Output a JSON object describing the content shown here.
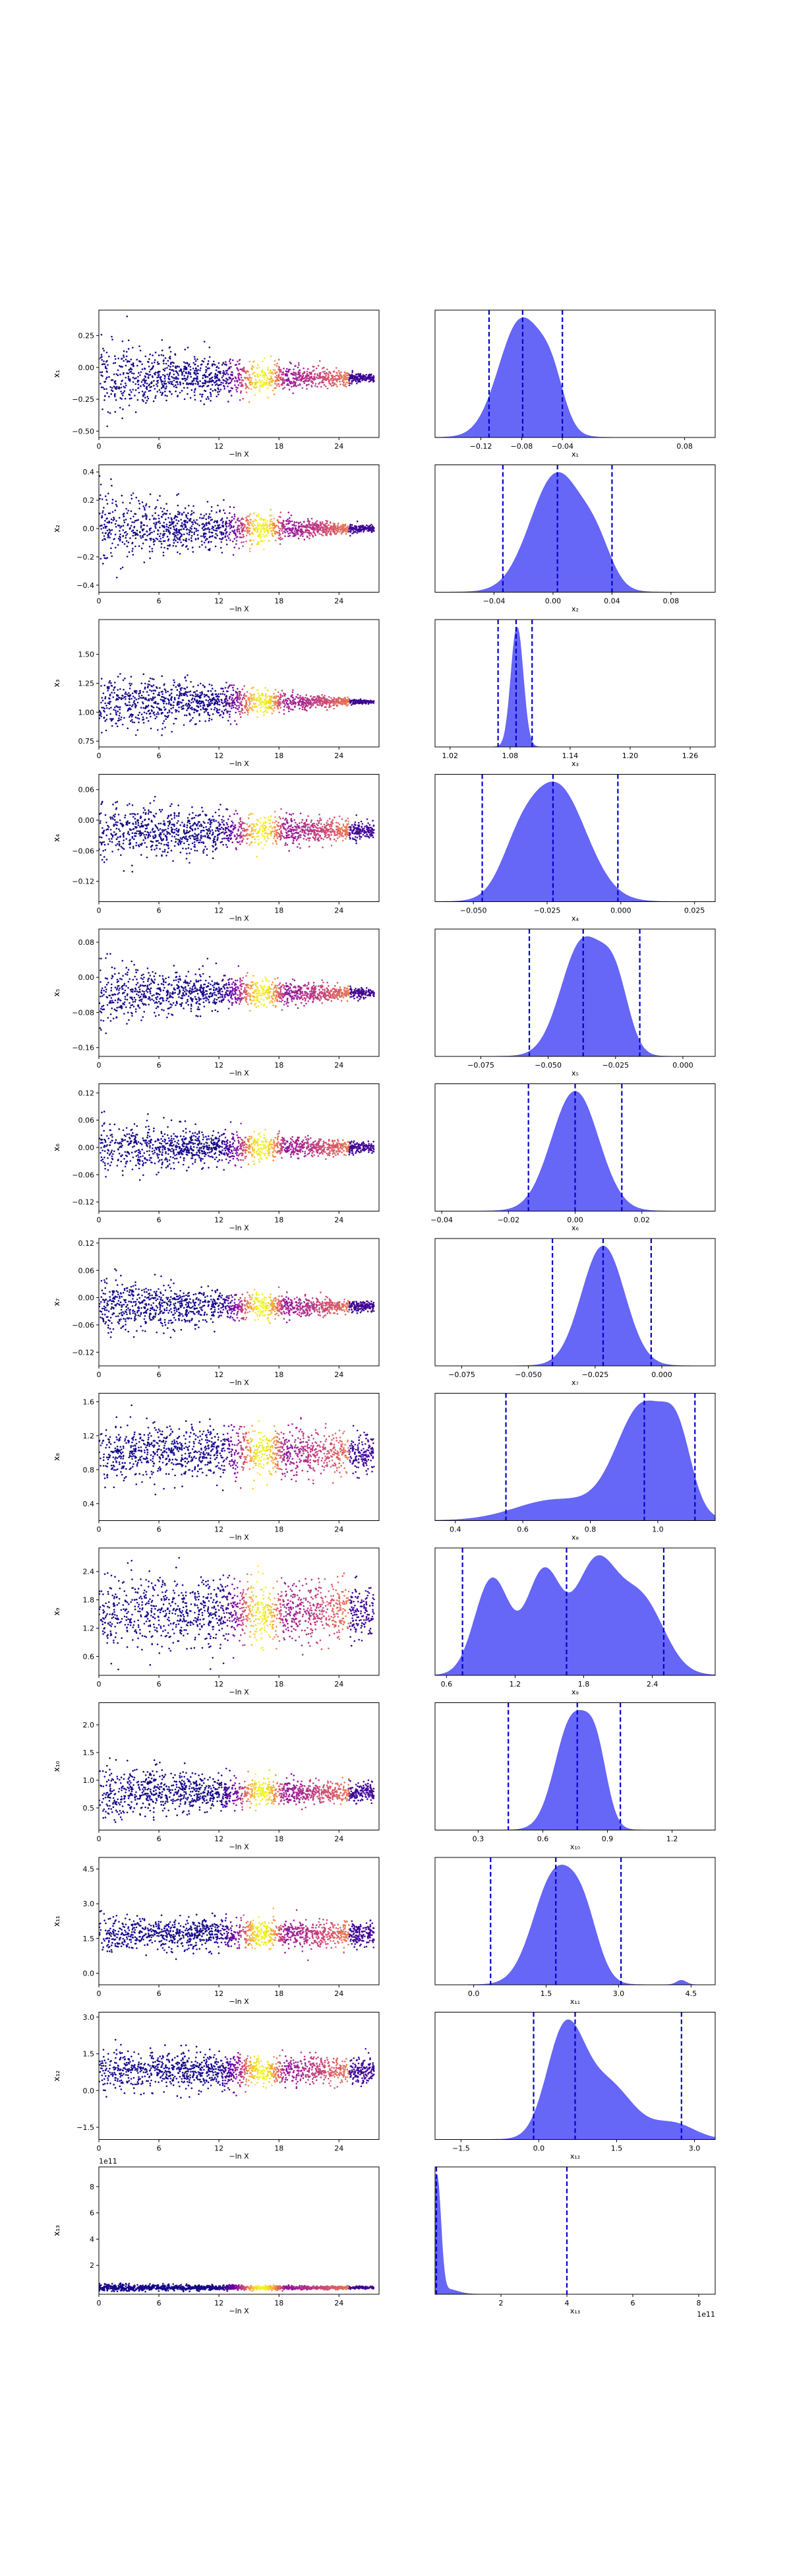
{
  "chart_data": [
    {
      "type": "scatter",
      "panel": "trace",
      "row": 1,
      "xlabel": "−ln X",
      "ylabel": "x₁",
      "xlim": [
        0,
        28
      ],
      "ylim": [
        -0.55,
        0.45
      ],
      "xticks": [
        0,
        6,
        12,
        18,
        24
      ],
      "yticks": [
        -0.5,
        -0.25,
        0.0,
        0.25
      ],
      "ytick_labels": [
        "−0.50",
        "−0.25",
        "0.00",
        "0.25"
      ],
      "center": -0.08,
      "spread_start": 0.3,
      "spread_end": 0.03
    },
    {
      "type": "area",
      "panel": "posterior",
      "row": 1,
      "xlabel": "x₁",
      "xlim": [
        -0.165,
        0.11
      ],
      "xticks": [
        -0.12,
        -0.08,
        -0.04,
        0.08
      ],
      "xtick_labels": [
        "−0.12",
        "−0.08",
        "−0.04",
        "0.08"
      ],
      "quantiles": [
        -0.112,
        -0.079,
        -0.04
      ],
      "density": [
        {
          "mu": -0.08,
          "sd": 0.022,
          "w": 1.0
        },
        {
          "mu": -0.05,
          "sd": 0.012,
          "w": 0.3
        }
      ]
    },
    {
      "type": "scatter",
      "panel": "trace",
      "row": 2,
      "xlabel": "−ln X",
      "ylabel": "x₂",
      "xlim": [
        0,
        28
      ],
      "ylim": [
        -0.45,
        0.45
      ],
      "xticks": [
        0,
        6,
        12,
        18,
        24
      ],
      "yticks": [
        -0.4,
        -0.2,
        0.0,
        0.2,
        0.4
      ],
      "ytick_labels": [
        "−0.4",
        "−0.2",
        "0.0",
        "0.2",
        "0.4"
      ],
      "center": 0.0,
      "spread_start": 0.28,
      "spread_end": 0.02
    },
    {
      "type": "area",
      "panel": "posterior",
      "row": 2,
      "xlabel": "x₂",
      "xlim": [
        -0.08,
        0.11
      ],
      "xticks": [
        -0.04,
        0.0,
        0.04,
        0.08
      ],
      "xtick_labels": [
        "−0.04",
        "0.00",
        "0.04",
        "0.08"
      ],
      "quantiles": [
        -0.034,
        0.003,
        0.04
      ],
      "density": [
        {
          "mu": 0.003,
          "sd": 0.018,
          "w": 1.0
        },
        {
          "mu": 0.03,
          "sd": 0.01,
          "w": 0.25
        }
      ]
    },
    {
      "type": "scatter",
      "panel": "trace",
      "row": 3,
      "xlabel": "−ln X",
      "ylabel": "x₃",
      "xlim": [
        0,
        28
      ],
      "ylim": [
        0.7,
        1.8
      ],
      "xticks": [
        0,
        6,
        12,
        18,
        24
      ],
      "yticks": [
        0.75,
        1.0,
        1.25,
        1.5
      ],
      "ytick_labels": [
        "0.75",
        "1.00",
        "1.25",
        "1.50"
      ],
      "center": 1.09,
      "spread_start": 0.3,
      "spread_end": 0.01
    },
    {
      "type": "area",
      "panel": "posterior",
      "row": 3,
      "xlabel": "x₃",
      "xlim": [
        1.005,
        1.285
      ],
      "xticks": [
        1.02,
        1.08,
        1.14,
        1.2,
        1.26
      ],
      "xtick_labels": [
        "1.02",
        "1.08",
        "1.14",
        "1.20",
        "1.26"
      ],
      "quantiles": [
        1.068,
        1.086,
        1.102
      ],
      "density": [
        {
          "mu": 1.087,
          "sd": 0.006,
          "w": 1.0
        }
      ]
    },
    {
      "type": "scatter",
      "panel": "trace",
      "row": 4,
      "xlabel": "−ln X",
      "ylabel": "x₄",
      "xlim": [
        0,
        28
      ],
      "ylim": [
        -0.16,
        0.09
      ],
      "xticks": [
        0,
        6,
        12,
        18,
        24
      ],
      "yticks": [
        -0.12,
        -0.06,
        0.0,
        0.06
      ],
      "ytick_labels": [
        "−0.12",
        "−0.06",
        "0.00",
        "0.06"
      ],
      "center": -0.02,
      "spread_start": 0.065,
      "spread_end": 0.015
    },
    {
      "type": "area",
      "panel": "posterior",
      "row": 4,
      "xlabel": "x₄",
      "xlim": [
        -0.063,
        0.032
      ],
      "xticks": [
        -0.05,
        -0.025,
        0.0,
        0.025
      ],
      "xtick_labels": [
        "−0.050",
        "−0.025",
        "0.000",
        "0.025"
      ],
      "quantiles": [
        -0.047,
        -0.023,
        -0.001
      ],
      "density": [
        {
          "mu": -0.022,
          "sd": 0.01,
          "w": 1.0
        },
        {
          "mu": -0.035,
          "sd": 0.006,
          "w": 0.25
        }
      ]
    },
    {
      "type": "scatter",
      "panel": "trace",
      "row": 5,
      "xlabel": "−ln X",
      "ylabel": "x₅",
      "xlim": [
        0,
        28
      ],
      "ylim": [
        -0.18,
        0.11
      ],
      "xticks": [
        0,
        6,
        12,
        18,
        24
      ],
      "yticks": [
        -0.16,
        -0.08,
        0.0,
        0.08
      ],
      "ytick_labels": [
        "−0.16",
        "−0.08",
        "0.00",
        "0.08"
      ],
      "center": -0.035,
      "spread_start": 0.075,
      "spread_end": 0.01
    },
    {
      "type": "area",
      "panel": "posterior",
      "row": 5,
      "xlabel": "x₅",
      "xlim": [
        -0.092,
        0.012
      ],
      "xticks": [
        -0.075,
        -0.05,
        -0.025,
        0.0
      ],
      "xtick_labels": [
        "−0.075",
        "−0.050",
        "−0.025",
        "0.000"
      ],
      "quantiles": [
        -0.057,
        -0.037,
        -0.016
      ],
      "density": [
        {
          "mu": -0.037,
          "sd": 0.008,
          "w": 1.0
        },
        {
          "mu": -0.025,
          "sd": 0.005,
          "w": 0.5
        }
      ]
    },
    {
      "type": "scatter",
      "panel": "trace",
      "row": 6,
      "xlabel": "−ln X",
      "ylabel": "x₆",
      "xlim": [
        0,
        28
      ],
      "ylim": [
        -0.14,
        0.14
      ],
      "xticks": [
        0,
        6,
        12,
        18,
        24
      ],
      "yticks": [
        -0.12,
        -0.06,
        0.0,
        0.06,
        0.12
      ],
      "ytick_labels": [
        "−0.12",
        "−0.06",
        "0.00",
        "0.06",
        "0.12"
      ],
      "center": 0.0,
      "spread_start": 0.07,
      "spread_end": 0.01
    },
    {
      "type": "area",
      "panel": "posterior",
      "row": 6,
      "xlabel": "x₆",
      "xlim": [
        -0.042,
        0.042
      ],
      "xticks": [
        -0.04,
        -0.02,
        0.0,
        0.02
      ],
      "xtick_labels": [
        "−0.04",
        "−0.02",
        "0.00",
        "0.02"
      ],
      "quantiles": [
        -0.014,
        0.0,
        0.014
      ],
      "density": [
        {
          "mu": 0.0,
          "sd": 0.007,
          "w": 1.0
        }
      ]
    },
    {
      "type": "scatter",
      "panel": "trace",
      "row": 7,
      "xlabel": "−ln X",
      "ylabel": "x₇",
      "xlim": [
        0,
        28
      ],
      "ylim": [
        -0.15,
        0.13
      ],
      "xticks": [
        0,
        6,
        12,
        18,
        24
      ],
      "yticks": [
        -0.12,
        -0.06,
        0.0,
        0.06,
        0.12
      ],
      "ytick_labels": [
        "−0.12",
        "−0.06",
        "0.00",
        "0.06",
        "0.12"
      ],
      "center": -0.02,
      "spread_start": 0.07,
      "spread_end": 0.01
    },
    {
      "type": "area",
      "panel": "posterior",
      "row": 7,
      "xlabel": "x₇",
      "xlim": [
        -0.085,
        0.02
      ],
      "xticks": [
        -0.075,
        -0.05,
        -0.025,
        0.0
      ],
      "xtick_labels": [
        "−0.075",
        "−0.050",
        "−0.025",
        "0.000"
      ],
      "quantiles": [
        -0.041,
        -0.022,
        -0.004
      ],
      "density": [
        {
          "mu": -0.022,
          "sd": 0.008,
          "w": 1.0
        }
      ]
    },
    {
      "type": "scatter",
      "panel": "trace",
      "row": 8,
      "xlabel": "−ln X",
      "ylabel": "x₈",
      "xlim": [
        0,
        28
      ],
      "ylim": [
        0.2,
        1.7
      ],
      "xticks": [
        0,
        6,
        12,
        18,
        24
      ],
      "yticks": [
        0.4,
        0.8,
        1.2,
        1.6
      ],
      "ytick_labels": [
        "0.4",
        "0.8",
        "1.2",
        "1.6"
      ],
      "center": 1.0,
      "spread_start": 0.35,
      "spread_end": 0.25
    },
    {
      "type": "area",
      "panel": "posterior",
      "row": 8,
      "xlabel": "x₈",
      "xlim": [
        0.34,
        1.17
      ],
      "xticks": [
        0.4,
        0.6,
        0.8,
        1.0
      ],
      "xtick_labels": [
        "0.4",
        "0.6",
        "0.8",
        "1.0"
      ],
      "quantiles": [
        0.55,
        0.96,
        1.11
      ],
      "density": [
        {
          "mu": 0.96,
          "sd": 0.08,
          "w": 1.0
        },
        {
          "mu": 1.06,
          "sd": 0.04,
          "w": 0.45
        },
        {
          "mu": 0.7,
          "sd": 0.12,
          "w": 0.18
        }
      ]
    },
    {
      "type": "scatter",
      "panel": "trace",
      "row": 9,
      "xlabel": "−ln X",
      "ylabel": "x₉",
      "xlim": [
        0,
        28
      ],
      "ylim": [
        0.2,
        2.9
      ],
      "xticks": [
        0,
        6,
        12,
        18,
        24
      ],
      "yticks": [
        0.6,
        1.2,
        1.8,
        2.4
      ],
      "ytick_labels": [
        "0.6",
        "1.2",
        "1.8",
        "2.4"
      ],
      "center": 1.55,
      "spread_start": 0.8,
      "spread_end": 0.6
    },
    {
      "type": "area",
      "panel": "posterior",
      "row": 9,
      "xlabel": "x₉",
      "xlim": [
        0.5,
        2.95
      ],
      "xticks": [
        0.6,
        1.2,
        1.8,
        2.4
      ],
      "xtick_labels": [
        "0.6",
        "1.2",
        "1.8",
        "2.4"
      ],
      "quantiles": [
        0.74,
        1.65,
        2.5
      ],
      "density": [
        {
          "mu": 1.0,
          "sd": 0.15,
          "w": 0.9
        },
        {
          "mu": 1.45,
          "sd": 0.15,
          "w": 0.95
        },
        {
          "mu": 1.9,
          "sd": 0.18,
          "w": 1.0
        },
        {
          "mu": 2.3,
          "sd": 0.2,
          "w": 0.7
        }
      ]
    },
    {
      "type": "scatter",
      "panel": "trace",
      "row": 10,
      "xlabel": "−ln X",
      "ylabel": "x₁₀",
      "xlim": [
        0,
        28
      ],
      "ylim": [
        0.1,
        2.4
      ],
      "xticks": [
        0,
        6,
        12,
        18,
        24
      ],
      "yticks": [
        0.5,
        1.0,
        1.5,
        2.0
      ],
      "ytick_labels": [
        "0.5",
        "1.0",
        "1.5",
        "2.0"
      ],
      "center": 0.78,
      "spread_start": 0.5,
      "spread_end": 0.15
    },
    {
      "type": "area",
      "panel": "posterior",
      "row": 10,
      "xlabel": "x₁₀",
      "xlim": [
        0.1,
        1.4
      ],
      "xticks": [
        0.3,
        0.6,
        0.9,
        1.2
      ],
      "xtick_labels": [
        "0.3",
        "0.6",
        "0.9",
        "1.2"
      ],
      "quantiles": [
        0.44,
        0.76,
        0.96
      ],
      "density": [
        {
          "mu": 0.74,
          "sd": 0.08,
          "w": 1.0
        },
        {
          "mu": 0.85,
          "sd": 0.05,
          "w": 0.5
        }
      ]
    },
    {
      "type": "scatter",
      "panel": "trace",
      "row": 11,
      "xlabel": "−ln X",
      "ylabel": "x₁₁",
      "xlim": [
        0,
        28
      ],
      "ylim": [
        -0.5,
        5.0
      ],
      "xticks": [
        0,
        6,
        12,
        18,
        24
      ],
      "yticks": [
        0.0,
        1.5,
        3.0,
        4.5
      ],
      "ytick_labels": [
        "0.0",
        "1.5",
        "3.0",
        "4.5"
      ],
      "center": 1.7,
      "spread_start": 0.8,
      "spread_end": 0.5
    },
    {
      "type": "area",
      "panel": "posterior",
      "row": 11,
      "xlabel": "x₁₁",
      "xlim": [
        -0.8,
        5.0
      ],
      "xticks": [
        0.0,
        1.5,
        3.0,
        4.5
      ],
      "xtick_labels": [
        "0.0",
        "1.5",
        "3.0",
        "4.5"
      ],
      "quantiles": [
        0.35,
        1.7,
        3.05
      ],
      "density": [
        {
          "mu": 1.7,
          "sd": 0.45,
          "w": 1.0
        },
        {
          "mu": 2.3,
          "sd": 0.3,
          "w": 0.4
        },
        {
          "mu": 4.3,
          "sd": 0.1,
          "w": 0.04
        }
      ]
    },
    {
      "type": "scatter",
      "panel": "trace",
      "row": 12,
      "xlabel": "−ln X",
      "ylabel": "x₁₂",
      "xlim": [
        0,
        28
      ],
      "ylim": [
        -2.0,
        3.2
      ],
      "xticks": [
        0,
        6,
        12,
        18,
        24
      ],
      "yticks": [
        -1.5,
        0.0,
        1.5,
        3.0
      ],
      "ytick_labels": [
        "−1.5",
        "0.0",
        "1.5",
        "3.0"
      ],
      "center": 0.8,
      "spread_start": 0.9,
      "spread_end": 0.5
    },
    {
      "type": "area",
      "panel": "posterior",
      "row": 12,
      "xlabel": "x₁₂",
      "xlim": [
        -2.0,
        3.4
      ],
      "xticks": [
        -1.5,
        0.0,
        1.5,
        3.0
      ],
      "xtick_labels": [
        "−1.5",
        "0.0",
        "1.5",
        "3.0"
      ],
      "quantiles": [
        -0.1,
        0.7,
        2.75
      ],
      "density": [
        {
          "mu": 0.5,
          "sd": 0.35,
          "w": 1.0
        },
        {
          "mu": 1.3,
          "sd": 0.5,
          "w": 0.55
        },
        {
          "mu": 2.6,
          "sd": 0.4,
          "w": 0.15
        }
      ]
    },
    {
      "type": "scatter",
      "panel": "trace",
      "row": 13,
      "xlabel": "−ln X",
      "ylabel": "x₁₃",
      "offset_label": "1e11",
      "xlim": [
        0,
        28
      ],
      "ylim": [
        -0.2,
        9.5
      ],
      "xticks": [
        0,
        6,
        12,
        18,
        24
      ],
      "yticks": [
        2,
        4,
        6,
        8
      ],
      "ytick_labels": [
        "2",
        "4",
        "6",
        "8"
      ],
      "center": 0.3,
      "spread_start": 0.3,
      "spread_end": 0.1
    },
    {
      "type": "area",
      "panel": "posterior",
      "row": 13,
      "xlabel": "x₁₃",
      "offset_label": "1e11",
      "xlim": [
        0.0,
        8.5
      ],
      "xticks": [
        2,
        4,
        6,
        8
      ],
      "xtick_labels": [
        "2",
        "4",
        "6",
        "8"
      ],
      "quantiles": [
        0.04,
        4.0
      ],
      "density": [
        {
          "mu": 0.05,
          "sd": 0.12,
          "w": 1.0
        },
        {
          "mu": 0.4,
          "sd": 0.3,
          "w": 0.04
        }
      ]
    }
  ],
  "colors": {
    "fill": "#5f5ff7",
    "quantile": "#0000cc",
    "scatter_low": "#120b83",
    "scatter_mid": "#8b0aa5",
    "scatter_high": "#f0f921"
  }
}
